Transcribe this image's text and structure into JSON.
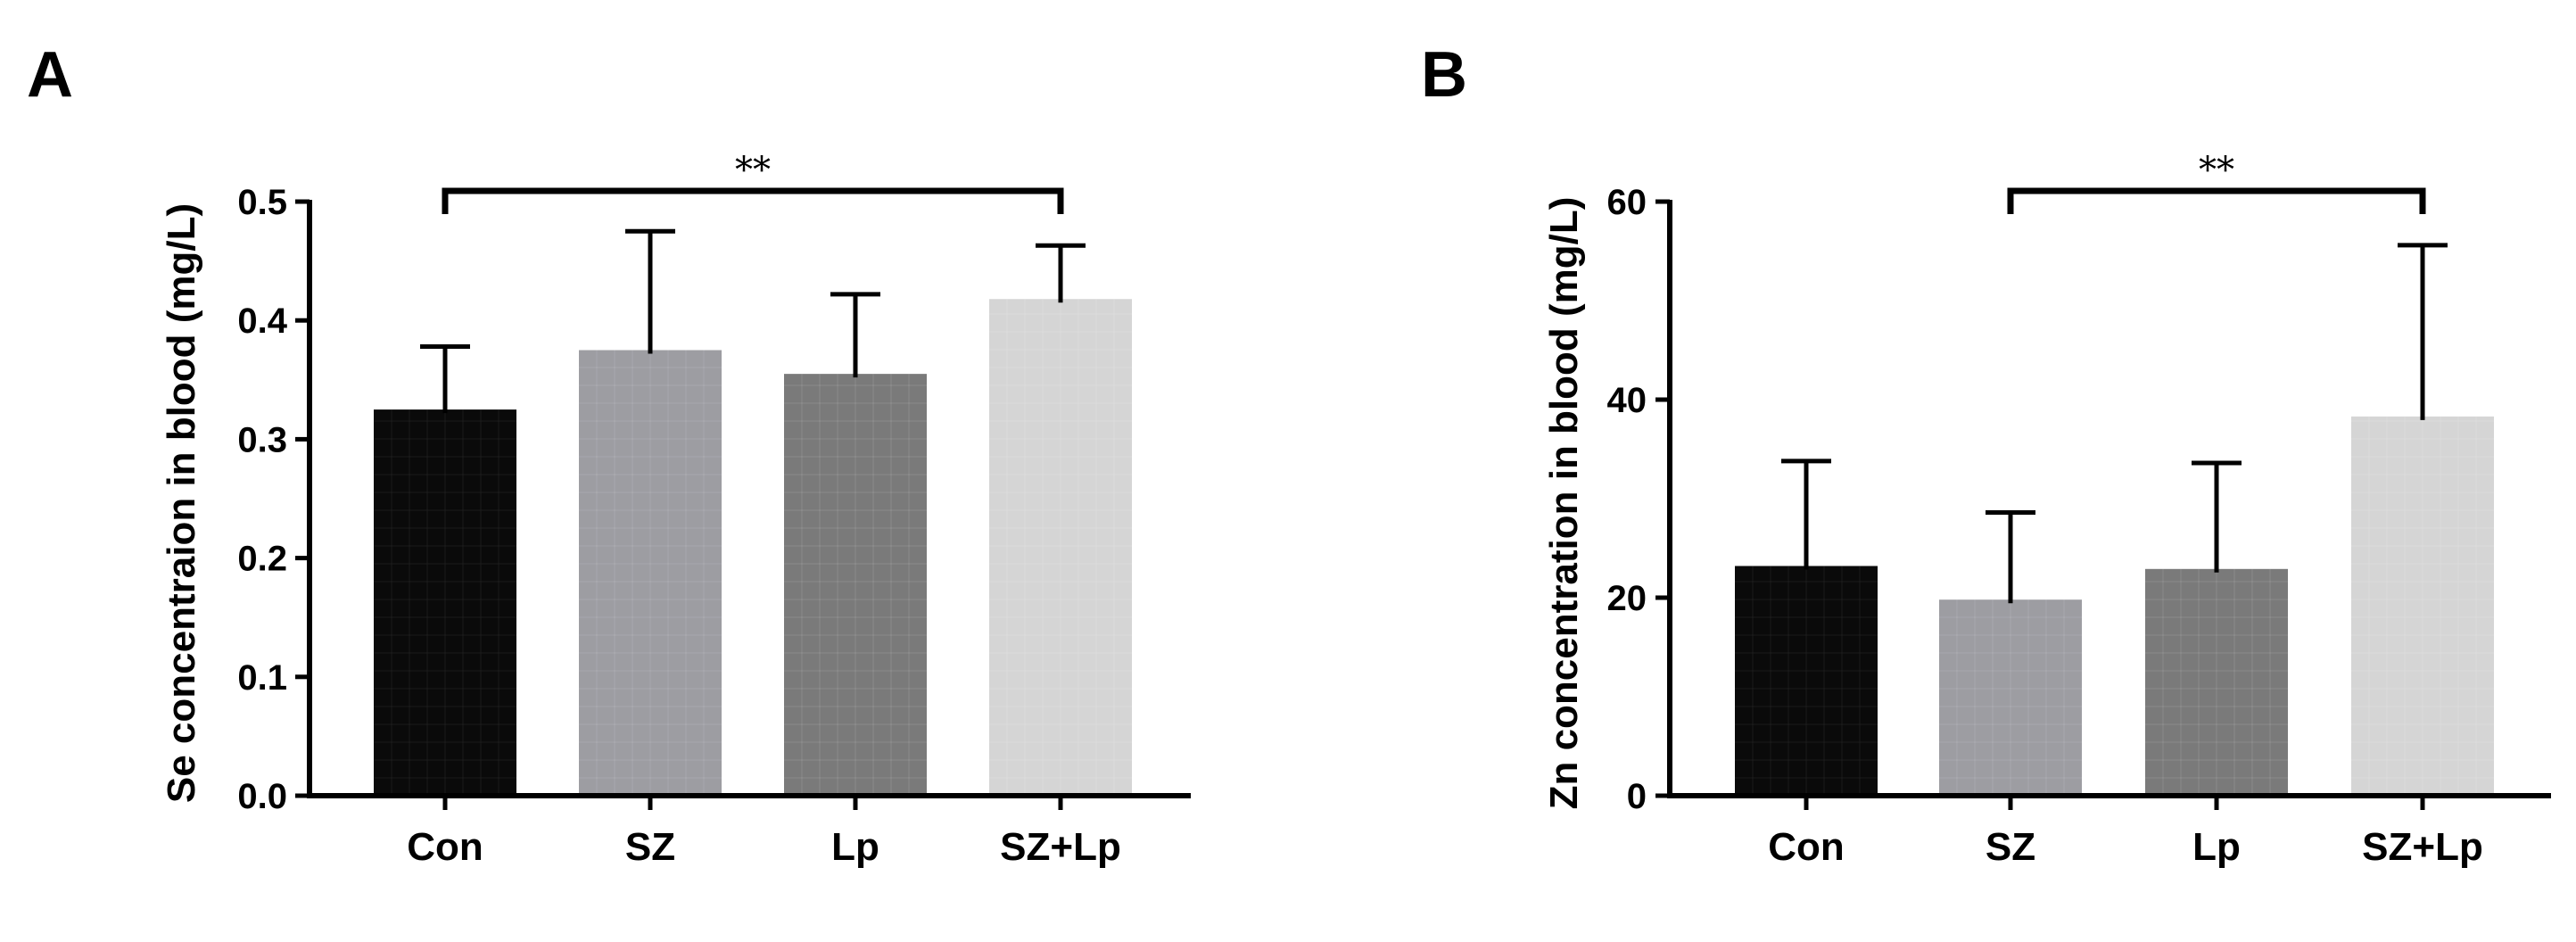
{
  "chart_data": [
    {
      "type": "bar",
      "panel": "A",
      "title": "",
      "xlabel": "",
      "ylabel": "Se concentraion in blood (mg/L)",
      "categories": [
        "Con",
        "SZ",
        "Lp",
        "SZ+Lp"
      ],
      "values": [
        0.325,
        0.375,
        0.355,
        0.418
      ],
      "errors": [
        0.053,
        0.1,
        0.067,
        0.045
      ],
      "bar_colors": [
        "#0a0a0a",
        "#9d9da2",
        "#7a7a7a",
        "#d5d5d5"
      ],
      "ylim": [
        0,
        0.5
      ],
      "yticks": [
        0.0,
        0.1,
        0.2,
        0.3,
        0.4,
        0.5
      ],
      "ytick_labels": [
        "0.0",
        "0.1",
        "0.2",
        "0.3",
        "0.4",
        "0.5"
      ],
      "significance": [
        {
          "from": "Con",
          "to": "SZ+Lp",
          "label": "**"
        }
      ]
    },
    {
      "type": "bar",
      "panel": "B",
      "title": "",
      "xlabel": "",
      "ylabel": "Zn concentration in blood (mg/L)",
      "categories": [
        "Con",
        "SZ",
        "Lp",
        "SZ+Lp"
      ],
      "values": [
        23.2,
        19.8,
        22.9,
        38.3
      ],
      "errors": [
        10.6,
        8.8,
        10.7,
        17.3
      ],
      "bar_colors": [
        "#0a0a0a",
        "#9d9da2",
        "#7a7a7a",
        "#d5d5d5"
      ],
      "ylim": [
        0,
        60
      ],
      "yticks": [
        0,
        20,
        40,
        60
      ],
      "ytick_labels": [
        "0",
        "20",
        "40",
        "60"
      ],
      "significance": [
        {
          "from": "SZ",
          "to": "SZ+Lp",
          "label": "**"
        }
      ]
    }
  ]
}
